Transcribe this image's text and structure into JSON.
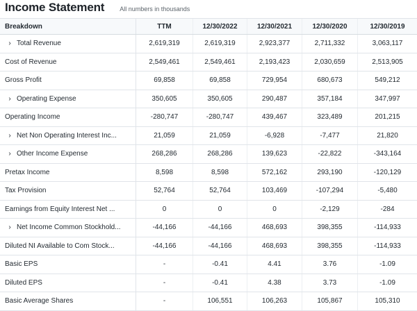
{
  "header": {
    "title": "Income Statement",
    "subtitle": "All numbers in thousands"
  },
  "table": {
    "breakdown_label": "Breakdown",
    "columns": [
      "TTM",
      "12/30/2022",
      "12/30/2021",
      "12/30/2020",
      "12/30/2019"
    ],
    "rows": [
      {
        "label": "Total Revenue",
        "expandable": true,
        "values": [
          "2,619,319",
          "2,619,319",
          "2,923,377",
          "2,711,332",
          "3,063,117"
        ]
      },
      {
        "label": "Cost of Revenue",
        "expandable": false,
        "values": [
          "2,549,461",
          "2,549,461",
          "2,193,423",
          "2,030,659",
          "2,513,905"
        ]
      },
      {
        "label": "Gross Profit",
        "expandable": false,
        "values": [
          "69,858",
          "69,858",
          "729,954",
          "680,673",
          "549,212"
        ]
      },
      {
        "label": "Operating Expense",
        "expandable": true,
        "values": [
          "350,605",
          "350,605",
          "290,487",
          "357,184",
          "347,997"
        ]
      },
      {
        "label": "Operating Income",
        "expandable": false,
        "values": [
          "-280,747",
          "-280,747",
          "439,467",
          "323,489",
          "201,215"
        ]
      },
      {
        "label": "Net Non Operating Interest Inc...",
        "expandable": true,
        "values": [
          "21,059",
          "21,059",
          "-6,928",
          "-7,477",
          "21,820"
        ]
      },
      {
        "label": "Other Income Expense",
        "expandable": true,
        "values": [
          "268,286",
          "268,286",
          "139,623",
          "-22,822",
          "-343,164"
        ]
      },
      {
        "label": "Pretax Income",
        "expandable": false,
        "values": [
          "8,598",
          "8,598",
          "572,162",
          "293,190",
          "-120,129"
        ]
      },
      {
        "label": "Tax Provision",
        "expandable": false,
        "values": [
          "52,764",
          "52,764",
          "103,469",
          "-107,294",
          "-5,480"
        ]
      },
      {
        "label": "Earnings from Equity Interest Net ...",
        "expandable": false,
        "values": [
          "0",
          "0",
          "0",
          "-2,129",
          "-284"
        ]
      },
      {
        "label": "Net Income Common Stockhold...",
        "expandable": true,
        "values": [
          "-44,166",
          "-44,166",
          "468,693",
          "398,355",
          "-114,933"
        ]
      },
      {
        "label": "Diluted NI Available to Com Stock...",
        "expandable": false,
        "values": [
          "-44,166",
          "-44,166",
          "468,693",
          "398,355",
          "-114,933"
        ]
      },
      {
        "label": "Basic EPS",
        "expandable": false,
        "values": [
          "-",
          "-0.41",
          "4.41",
          "3.76",
          "-1.09"
        ]
      },
      {
        "label": "Diluted EPS",
        "expandable": false,
        "values": [
          "-",
          "-0.41",
          "4.38",
          "3.73",
          "-1.09"
        ]
      },
      {
        "label": "Basic Average Shares",
        "expandable": false,
        "values": [
          "-",
          "106,551",
          "106,263",
          "105,867",
          "105,310"
        ]
      }
    ]
  },
  "icons": {
    "expand": "chevron-right-icon"
  }
}
